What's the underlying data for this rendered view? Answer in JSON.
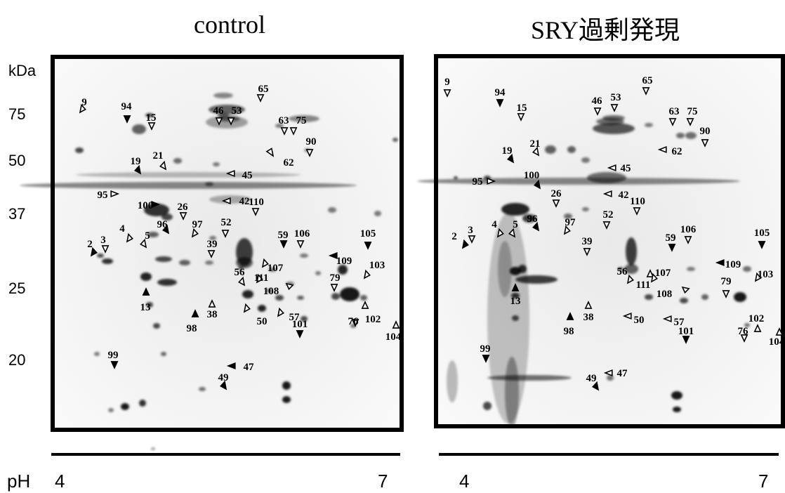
{
  "titles": {
    "left": "control",
    "right": "SRY過剰発現"
  },
  "kda": {
    "unit": "kDa",
    "marks": [
      "75",
      "50",
      "37",
      "25",
      "20"
    ]
  },
  "ph": {
    "label": "pH",
    "left_low": "4",
    "left_high": "7",
    "right_low": "4",
    "right_high": "7"
  },
  "left_spot_labels": [
    "9",
    "94",
    "15",
    "46",
    "53",
    "65",
    "63",
    "75",
    "90",
    "62",
    "19",
    "21",
    "45",
    "95",
    "100",
    "42",
    "110",
    "26",
    "97",
    "52",
    "4",
    "5",
    "96",
    "2",
    "3",
    "39",
    "59",
    "106",
    "105",
    "109",
    "56",
    "107",
    "111",
    "108",
    "79",
    "103",
    "13",
    "38",
    "98",
    "50",
    "57",
    "101",
    "76",
    "102",
    "104",
    "99",
    "47",
    "49"
  ],
  "right_spot_labels": [
    "9",
    "94",
    "15",
    "46",
    "53",
    "65",
    "63",
    "75",
    "90",
    "62",
    "21",
    "19",
    "45",
    "95",
    "100",
    "42",
    "110",
    "26",
    "97",
    "52",
    "4",
    "5",
    "96",
    "2",
    "3",
    "39",
    "59",
    "106",
    "105",
    "109",
    "56",
    "107",
    "111",
    "108",
    "79",
    "103",
    "13",
    "38",
    "98",
    "50",
    "57",
    "101",
    "76",
    "102",
    "104",
    "99",
    "47",
    "49"
  ],
  "colors": {
    "gel_background": "#f7f7f7",
    "border": "#000000"
  }
}
